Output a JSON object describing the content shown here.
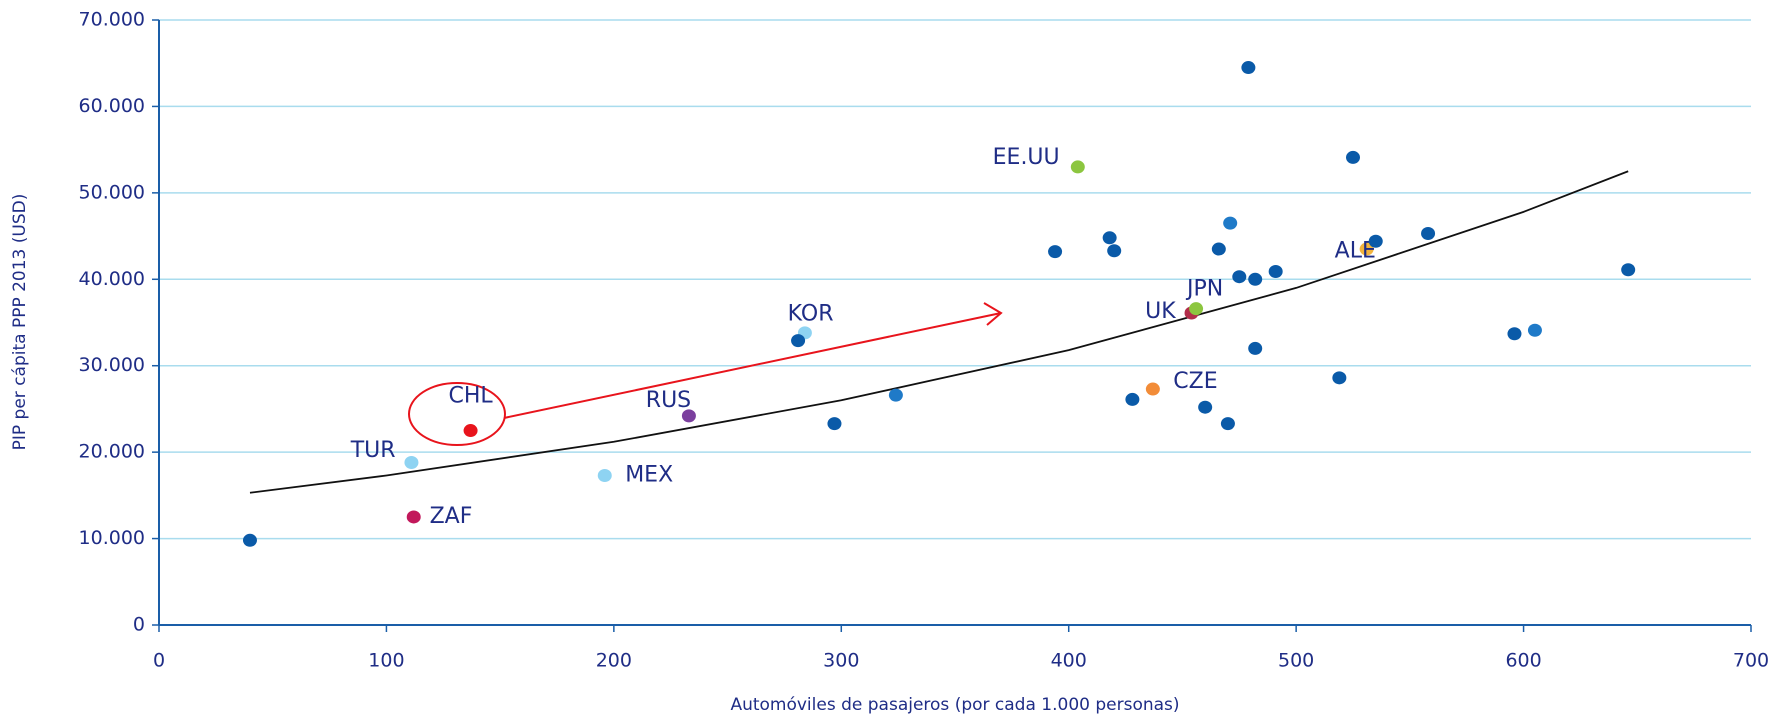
{
  "chart_data": {
    "type": "scatter",
    "xlabel": "Automóviles de pasajeros (por cada 1.000 personas)",
    "ylabel": "PIP per cápita PPP 2013 (USD)",
    "xlim": [
      0,
      700
    ],
    "ylim": [
      0,
      70000
    ],
    "xticks": [
      0,
      100,
      200,
      300,
      400,
      500,
      600,
      700
    ],
    "yticks": [
      0,
      {
        "value": 10000,
        "label": "10.000"
      },
      {
        "value": 20000,
        "label": "20.000"
      },
      {
        "value": 30000,
        "label": "30.000"
      },
      {
        "value": 40000,
        "label": "40.000"
      },
      {
        "value": 50000,
        "label": "50.000"
      },
      {
        "value": 60000,
        "label": "60.000"
      },
      {
        "value": 70000,
        "label": "70.000"
      }
    ],
    "grid": true,
    "x": [
      137,
      111,
      112,
      196,
      233,
      284,
      404,
      437,
      454,
      456,
      531,
      40,
      281,
      297,
      324,
      394,
      418,
      420,
      428,
      460,
      466,
      470,
      471,
      475,
      479,
      482,
      482,
      491,
      519,
      525,
      535,
      558,
      596,
      605,
      646
    ],
    "values": [
      22500,
      18800,
      12500,
      17300,
      24200,
      33800,
      53000,
      27300,
      36100,
      36600,
      43500,
      9800,
      32900,
      23300,
      26600,
      43200,
      44800,
      43300,
      26100,
      25200,
      43500,
      23300,
      46500,
      40300,
      64500,
      40000,
      32000,
      40900,
      28600,
      54100,
      44400,
      45300,
      33700,
      34100,
      41100
    ],
    "colors": [
      "#e8141c",
      "#8ed3f2",
      "#c2185b",
      "#8ed3f2",
      "#7b3f9e",
      "#8ed3f2",
      "#8cc63f",
      "#f28c38",
      "#b22d4a",
      "#8cc63f",
      "#f2b33d",
      "#0a5aa8",
      "#0a5aa8",
      "#0a5aa8",
      "#1f7ac8",
      "#0a5aa8",
      "#0a5aa8",
      "#0a5aa8",
      "#0a5aa8",
      "#0a5aa8",
      "#0a5aa8",
      "#0a5aa8",
      "#1f7ac8",
      "#0a5aa8",
      "#0a5aa8",
      "#0a5aa8",
      "#0a5aa8",
      "#0a5aa8",
      "#0a5aa8",
      "#0a5aa8",
      "#0a5aa8",
      "#0a5aa8",
      "#0a5aa8",
      "#1f7ac8",
      "#0a5aa8"
    ],
    "point_labels": [
      "CHL",
      "TUR",
      "ZAF",
      "MEX",
      "RUS",
      "KOR",
      "EE.UU",
      "CZE",
      "UK",
      "JPN",
      "ALE",
      null,
      null,
      null,
      null,
      null,
      null,
      null,
      null,
      null,
      null,
      null,
      null,
      null,
      null,
      null,
      null,
      null,
      null,
      null,
      null,
      null,
      null,
      null,
      null
    ],
    "trendline": {
      "x": [
        40,
        100,
        200,
        300,
        400,
        500,
        600,
        646
      ],
      "values": [
        15300,
        17300,
        21200,
        26000,
        31800,
        39000,
        47800,
        52500
      ],
      "color": "#111111"
    }
  }
}
